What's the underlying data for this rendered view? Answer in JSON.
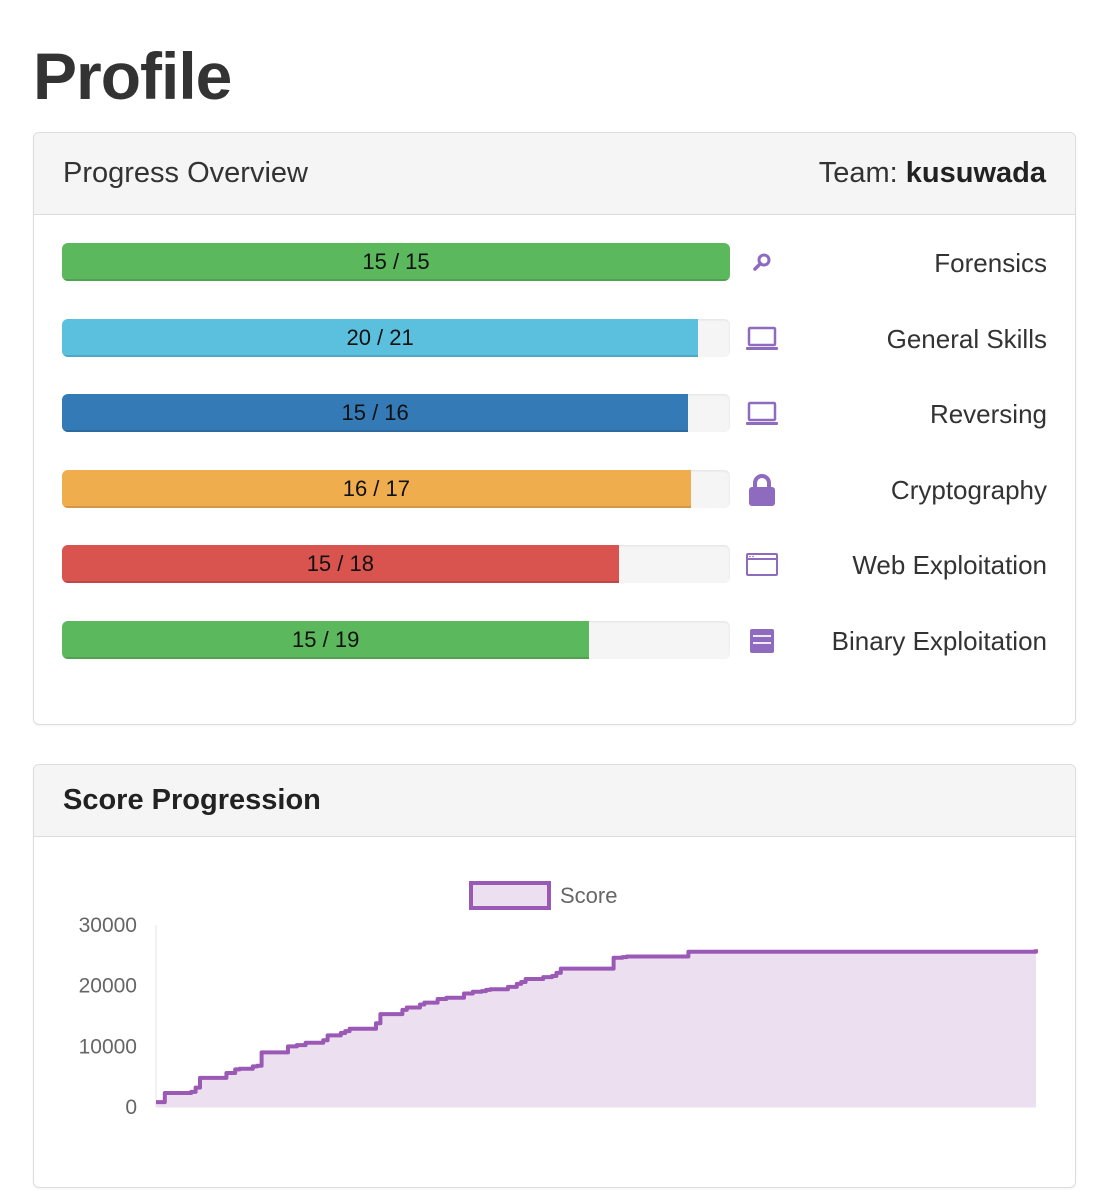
{
  "page": {
    "title": "Profile"
  },
  "progress_panel": {
    "title": "Progress Overview",
    "team_label": "Team:",
    "team_name": "kusuwada",
    "categories": [
      {
        "name": "Forensics",
        "solved": 15,
        "total": 15,
        "text": "15 / 15",
        "color": "#5cb85c",
        "icon": "search-icon"
      },
      {
        "name": "General Skills",
        "solved": 20,
        "total": 21,
        "text": "20 / 21",
        "color": "#5bc0de",
        "icon": "laptop-icon"
      },
      {
        "name": "Reversing",
        "solved": 15,
        "total": 16,
        "text": "15 / 16",
        "color": "#337ab7",
        "icon": "laptop-icon"
      },
      {
        "name": "Cryptography",
        "solved": 16,
        "total": 17,
        "text": "16 / 17",
        "color": "#f0ad4e",
        "icon": "lock-icon"
      },
      {
        "name": "Web Exploitation",
        "solved": 15,
        "total": 18,
        "text": "15 / 18",
        "color": "#d9534f",
        "icon": "browser-window-icon"
      },
      {
        "name": "Binary Exploitation",
        "solved": 15,
        "total": 19,
        "text": "15 / 19",
        "color": "#5cb85c",
        "icon": "binary-file-icon"
      }
    ]
  },
  "score_panel": {
    "title": "Score Progression"
  },
  "chart_data": {
    "type": "area",
    "title": "",
    "legend": [
      "Score"
    ],
    "legend_position": "top-center",
    "xlabel": "",
    "ylabel": "",
    "ylim": [
      0,
      30000
    ],
    "yticks": [
      "30000",
      "20000",
      "10000",
      "0"
    ],
    "line_color": "#9b59b6",
    "fill_color": "#ecdff0",
    "series": [
      {
        "name": "Score",
        "x": [
          0,
          1,
          4,
          4.5,
          5,
          8,
          9,
          9.5,
          11,
          11.5,
          12,
          15,
          16,
          17,
          19,
          19.5,
          21,
          21.5,
          22,
          25,
          25.5,
          28,
          28.5,
          30,
          30.5,
          32,
          33,
          35,
          36,
          37,
          37.5,
          38,
          40,
          41,
          41.5,
          42,
          44,
          45,
          45.5,
          46,
          52,
          53,
          53.5,
          55,
          56,
          58,
          59,
          59.5,
          60,
          60.5,
          60.8,
          100
        ],
        "values": [
          800,
          2300,
          2500,
          3200,
          4800,
          5600,
          6200,
          6300,
          6700,
          6800,
          9000,
          10000,
          10200,
          10600,
          11000,
          11800,
          12200,
          12500,
          12900,
          13800,
          15300,
          16000,
          16400,
          16900,
          17200,
          17800,
          18000,
          18700,
          19000,
          19100,
          19300,
          19400,
          19800,
          20300,
          20600,
          21100,
          21400,
          21600,
          22100,
          22800,
          24600,
          24700,
          24800,
          24800,
          24800,
          24800,
          24800,
          24800,
          24800,
          25600,
          25600,
          26000
        ]
      }
    ]
  }
}
